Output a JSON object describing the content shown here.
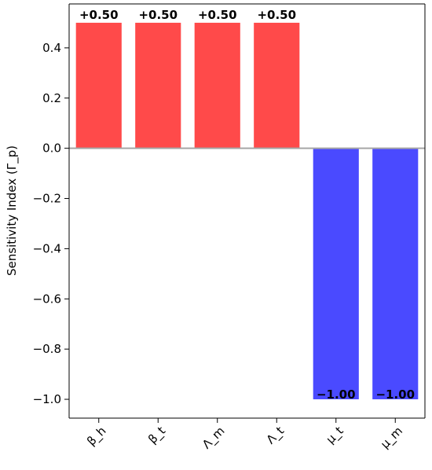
{
  "chart_data": {
    "type": "bar",
    "title": "",
    "xlabel": "",
    "ylabel": "Sensitivity Index (Γ_p)",
    "categories": [
      "β_h",
      "β_t",
      "Λ_m",
      "Λ_t",
      "μ_t",
      "μ_m"
    ],
    "values": [
      0.5,
      0.5,
      0.5,
      0.5,
      -1.0,
      -1.0
    ],
    "value_labels": [
      "+0.50",
      "+0.50",
      "+0.50",
      "+0.50",
      "−1.00",
      "−1.00"
    ],
    "yticks": [
      0.4,
      0.2,
      0.0,
      -0.2,
      -0.4,
      -0.6,
      -0.8,
      -1.0
    ],
    "ytick_labels": [
      "0.4",
      "0.2",
      "0.0",
      "−0.2",
      "−0.4",
      "−0.6",
      "−0.8",
      "−1.0"
    ],
    "ylim": [
      -1.075,
      0.575
    ],
    "grid": false,
    "legend": false,
    "zero_line": true,
    "colors": {
      "positive": "#ff4a4a",
      "negative": "#4a4aff",
      "zero_line": "#a6a6a6",
      "axis": "#000000"
    }
  }
}
